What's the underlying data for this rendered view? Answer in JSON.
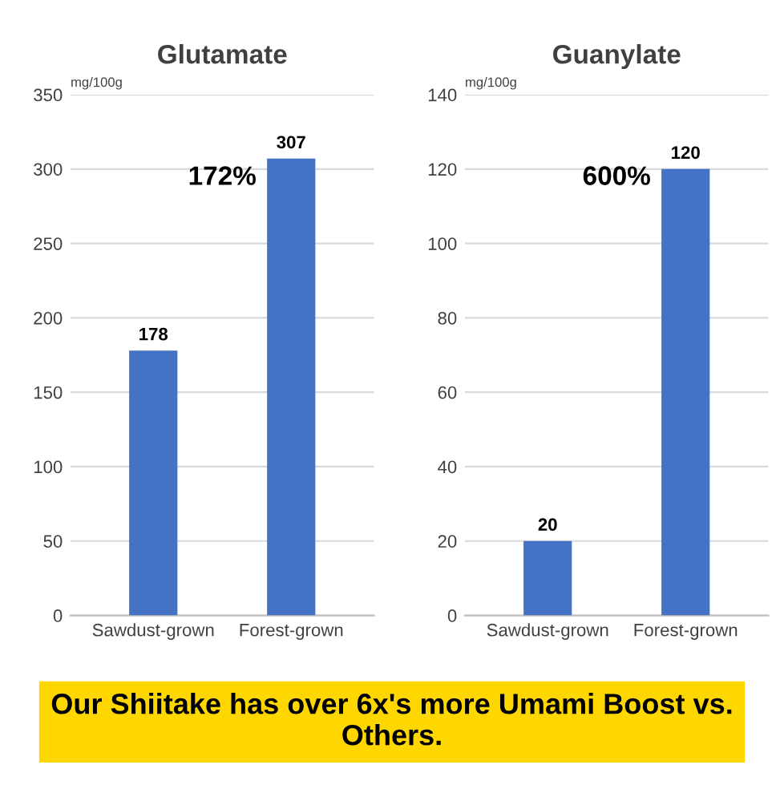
{
  "chart_data": [
    {
      "type": "bar",
      "title": "Glutamate",
      "ylabel": "mg/100g",
      "categories": [
        "Sawdust-grown",
        "Forest-grown"
      ],
      "values": [
        178,
        307
      ],
      "color": "#4472c4",
      "ylim": [
        0,
        350
      ],
      "yticks": [
        0,
        50,
        100,
        150,
        200,
        250,
        300,
        350
      ],
      "grid": "y",
      "data_labels": true,
      "annotations": [
        "172%",
        "Our Shiitake has over 6x's more Umami Boost vs. Others."
      ]
    },
    {
      "type": "bar",
      "title": "Guanylate",
      "ylabel": "mg/100g",
      "categories": [
        "Sawdust-grown",
        "Forest-grown"
      ],
      "values": [
        20,
        120
      ],
      "color": "#4472c4",
      "ylim": [
        0,
        140
      ],
      "yticks": [
        0,
        20,
        40,
        60,
        80,
        100,
        120,
        140
      ],
      "grid": "y",
      "data_labels": true,
      "annotations": [
        "600%"
      ]
    }
  ]
}
